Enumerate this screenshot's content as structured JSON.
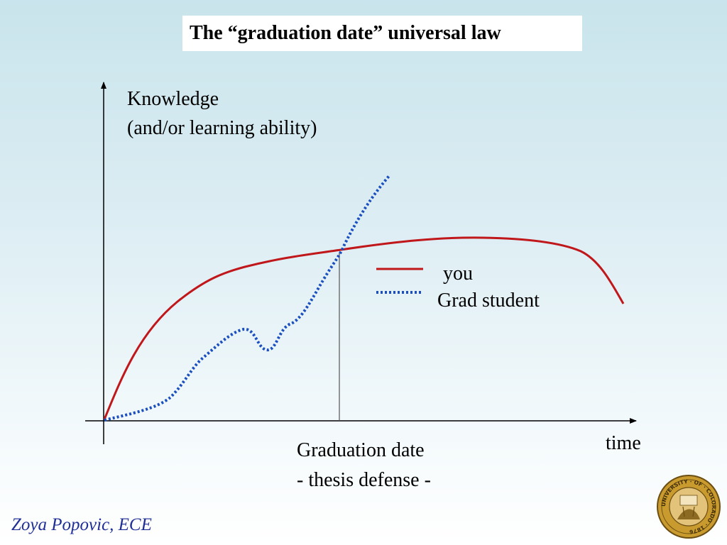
{
  "title": "The “graduation date” universal law",
  "y_axis_label": {
    "line1": "Knowledge",
    "line2": "(and/or learning ability)"
  },
  "x_axis_label": "time",
  "legend": [
    {
      "label": "you",
      "style": "solid",
      "color": "#c0171b"
    },
    {
      "label": "Grad student",
      "style": "dotted",
      "color": "#1b4fbf"
    }
  ],
  "marker": {
    "line1": "Graduation date",
    "line2": "- thesis defense -"
  },
  "footer": "Zoya Popovic, ECE",
  "seal": {
    "kind": "university seal",
    "text": "UNIVERSITY · OF · COLORADO · 1876"
  },
  "colors": {
    "you_line": "#c0171b",
    "grad_student_line": "#1b4fbf",
    "footer_text": "#1f2f96",
    "seal_gold": "#c99a2e"
  }
}
